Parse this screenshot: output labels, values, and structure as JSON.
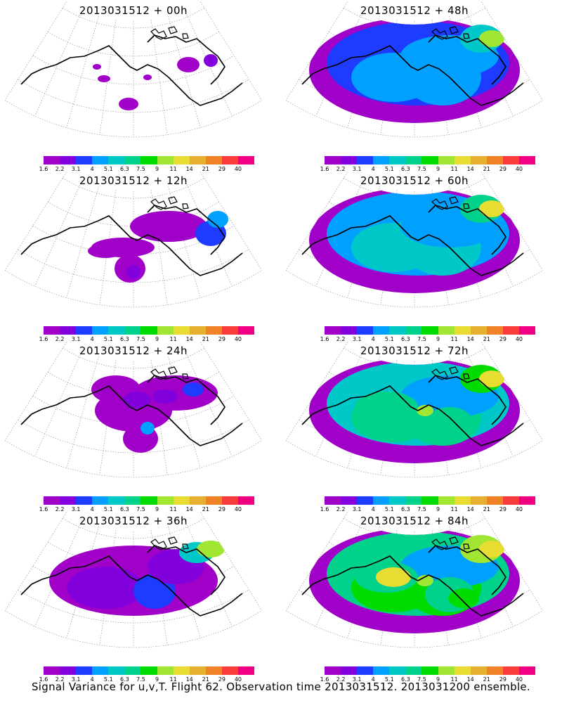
{
  "caption": "Signal Variance for u,v,T. Flight 62. Observation time 2013031512. 2013031200 ensemble.",
  "colorbar": {
    "colors": [
      "#a000c8",
      "#8200dc",
      "#1e3cff",
      "#00a0ff",
      "#00c8c8",
      "#00d28c",
      "#00dc00",
      "#a0e632",
      "#e6dc32",
      "#e6af2d",
      "#f08228",
      "#fa3c3c",
      "#f00082"
    ],
    "labels": [
      "1.6",
      "2.2",
      "3.1",
      "4",
      "5.1",
      "6.3",
      "7.5",
      "9",
      "11",
      "14",
      "21",
      "29",
      "40"
    ]
  },
  "panels": [
    {
      "title": "2013031512 + 00h",
      "level": 0
    },
    {
      "title": "2013031512 + 48h",
      "level": 4
    },
    {
      "title": "2013031512 + 12h",
      "level": 1
    },
    {
      "title": "2013031512 + 60h",
      "level": 5
    },
    {
      "title": "2013031512 + 24h",
      "level": 2
    },
    {
      "title": "2013031512 + 72h",
      "level": 6
    },
    {
      "title": "2013031512 + 36h",
      "level": 3
    },
    {
      "title": "2013031512 + 84h",
      "level": 7
    }
  ]
}
